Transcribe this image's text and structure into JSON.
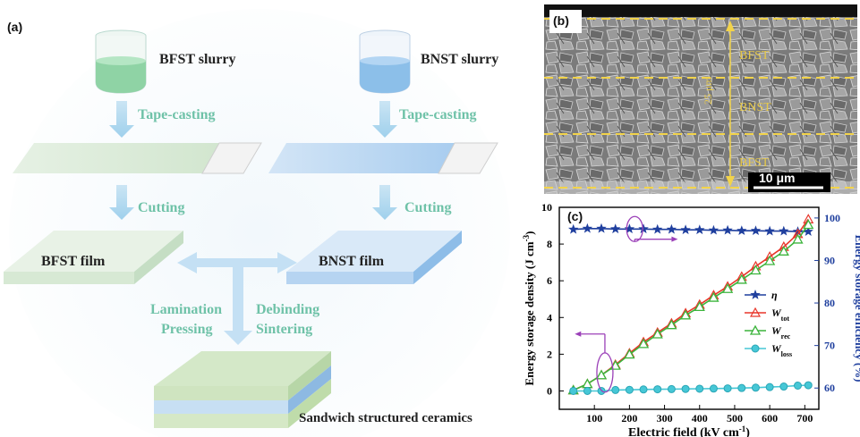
{
  "panel_a": {
    "label": "(a)",
    "slurry_left": "BFST slurry",
    "slurry_right": "BNST slurry",
    "tape_left": "Tape-casting",
    "tape_right": "Tape-casting",
    "cut_left": "Cutting",
    "cut_right": "Cutting",
    "film_left": "BFST film",
    "film_right": "BNST film",
    "lamination": "Lamination",
    "pressing": "Pressing",
    "debinding": "Debinding",
    "sintering": "Sintering",
    "result": "Sandwich structured ceramics",
    "colors": {
      "green": "#cfe6cf",
      "blue": "#a9cbee",
      "arrow": "#a9d4ee",
      "text": "#6fc2a8"
    }
  },
  "panel_b": {
    "label": "(b)",
    "layer_top": "BFST",
    "layer_mid": "BNST",
    "layer_bot": "BFST",
    "thickness": "25 μm",
    "scale_bar": "10 μm"
  },
  "panel_c": {
    "label": "(c)"
  },
  "chart_data": {
    "type": "line",
    "title": "",
    "xlabel": "Electric field (kV cm",
    "xlabel_sup": "-1",
    "ylabel_left": "Energy storage density (J cm",
    "ylabel_left_sup": "-3",
    "ylabel_right": "Energy storage efficiency (%)",
    "xlim": [
      0,
      740
    ],
    "ylim_left": [
      -1,
      10
    ],
    "ylim_right": [
      55,
      102.5
    ],
    "xticks": [
      100,
      200,
      300,
      400,
      500,
      600,
      700
    ],
    "yticks_left": [
      0,
      2,
      4,
      6,
      8,
      10
    ],
    "yticks_right": [
      60,
      70,
      80,
      90,
      100
    ],
    "legend_position": "right",
    "x": [
      40,
      80,
      120,
      160,
      200,
      240,
      280,
      320,
      360,
      400,
      440,
      480,
      520,
      560,
      600,
      640,
      680,
      710
    ],
    "series": [
      {
        "name": "η",
        "symbol": "η",
        "sub": "",
        "axis": "right",
        "color": "#1f3f9e",
        "marker": "star",
        "values": [
          97.3,
          97.5,
          97.5,
          97.4,
          97.4,
          97.4,
          97.3,
          97.3,
          97.2,
          97.2,
          97.1,
          97.1,
          97.0,
          97.0,
          96.9,
          96.9,
          96.8,
          96.8
        ]
      },
      {
        "name": "W_tot",
        "symbol": "W",
        "sub": "tot",
        "axis": "left",
        "color": "#e8362a",
        "marker": "triangle-open",
        "values": [
          0.04,
          0.38,
          0.86,
          1.43,
          2.05,
          2.66,
          3.18,
          3.68,
          4.23,
          4.7,
          5.21,
          5.69,
          6.22,
          6.79,
          7.31,
          7.85,
          8.55,
          9.35
        ]
      },
      {
        "name": "W_rec",
        "symbol": "W",
        "sub": "rec",
        "axis": "left",
        "color": "#3cb43c",
        "marker": "triangle",
        "values": [
          0.04,
          0.38,
          0.86,
          1.38,
          1.99,
          2.56,
          3.09,
          3.59,
          4.12,
          4.58,
          5.08,
          5.56,
          6.06,
          6.57,
          7.08,
          7.6,
          8.25,
          9.05
        ]
      },
      {
        "name": "W_loss",
        "symbol": "W",
        "sub": "loss",
        "axis": "left",
        "color": "#46c7d6",
        "marker": "circle",
        "values": [
          0.0,
          0.0,
          0.0,
          0.05,
          0.06,
          0.08,
          0.09,
          0.1,
          0.11,
          0.12,
          0.13,
          0.14,
          0.16,
          0.18,
          0.21,
          0.24,
          0.29,
          0.31
        ]
      }
    ]
  }
}
